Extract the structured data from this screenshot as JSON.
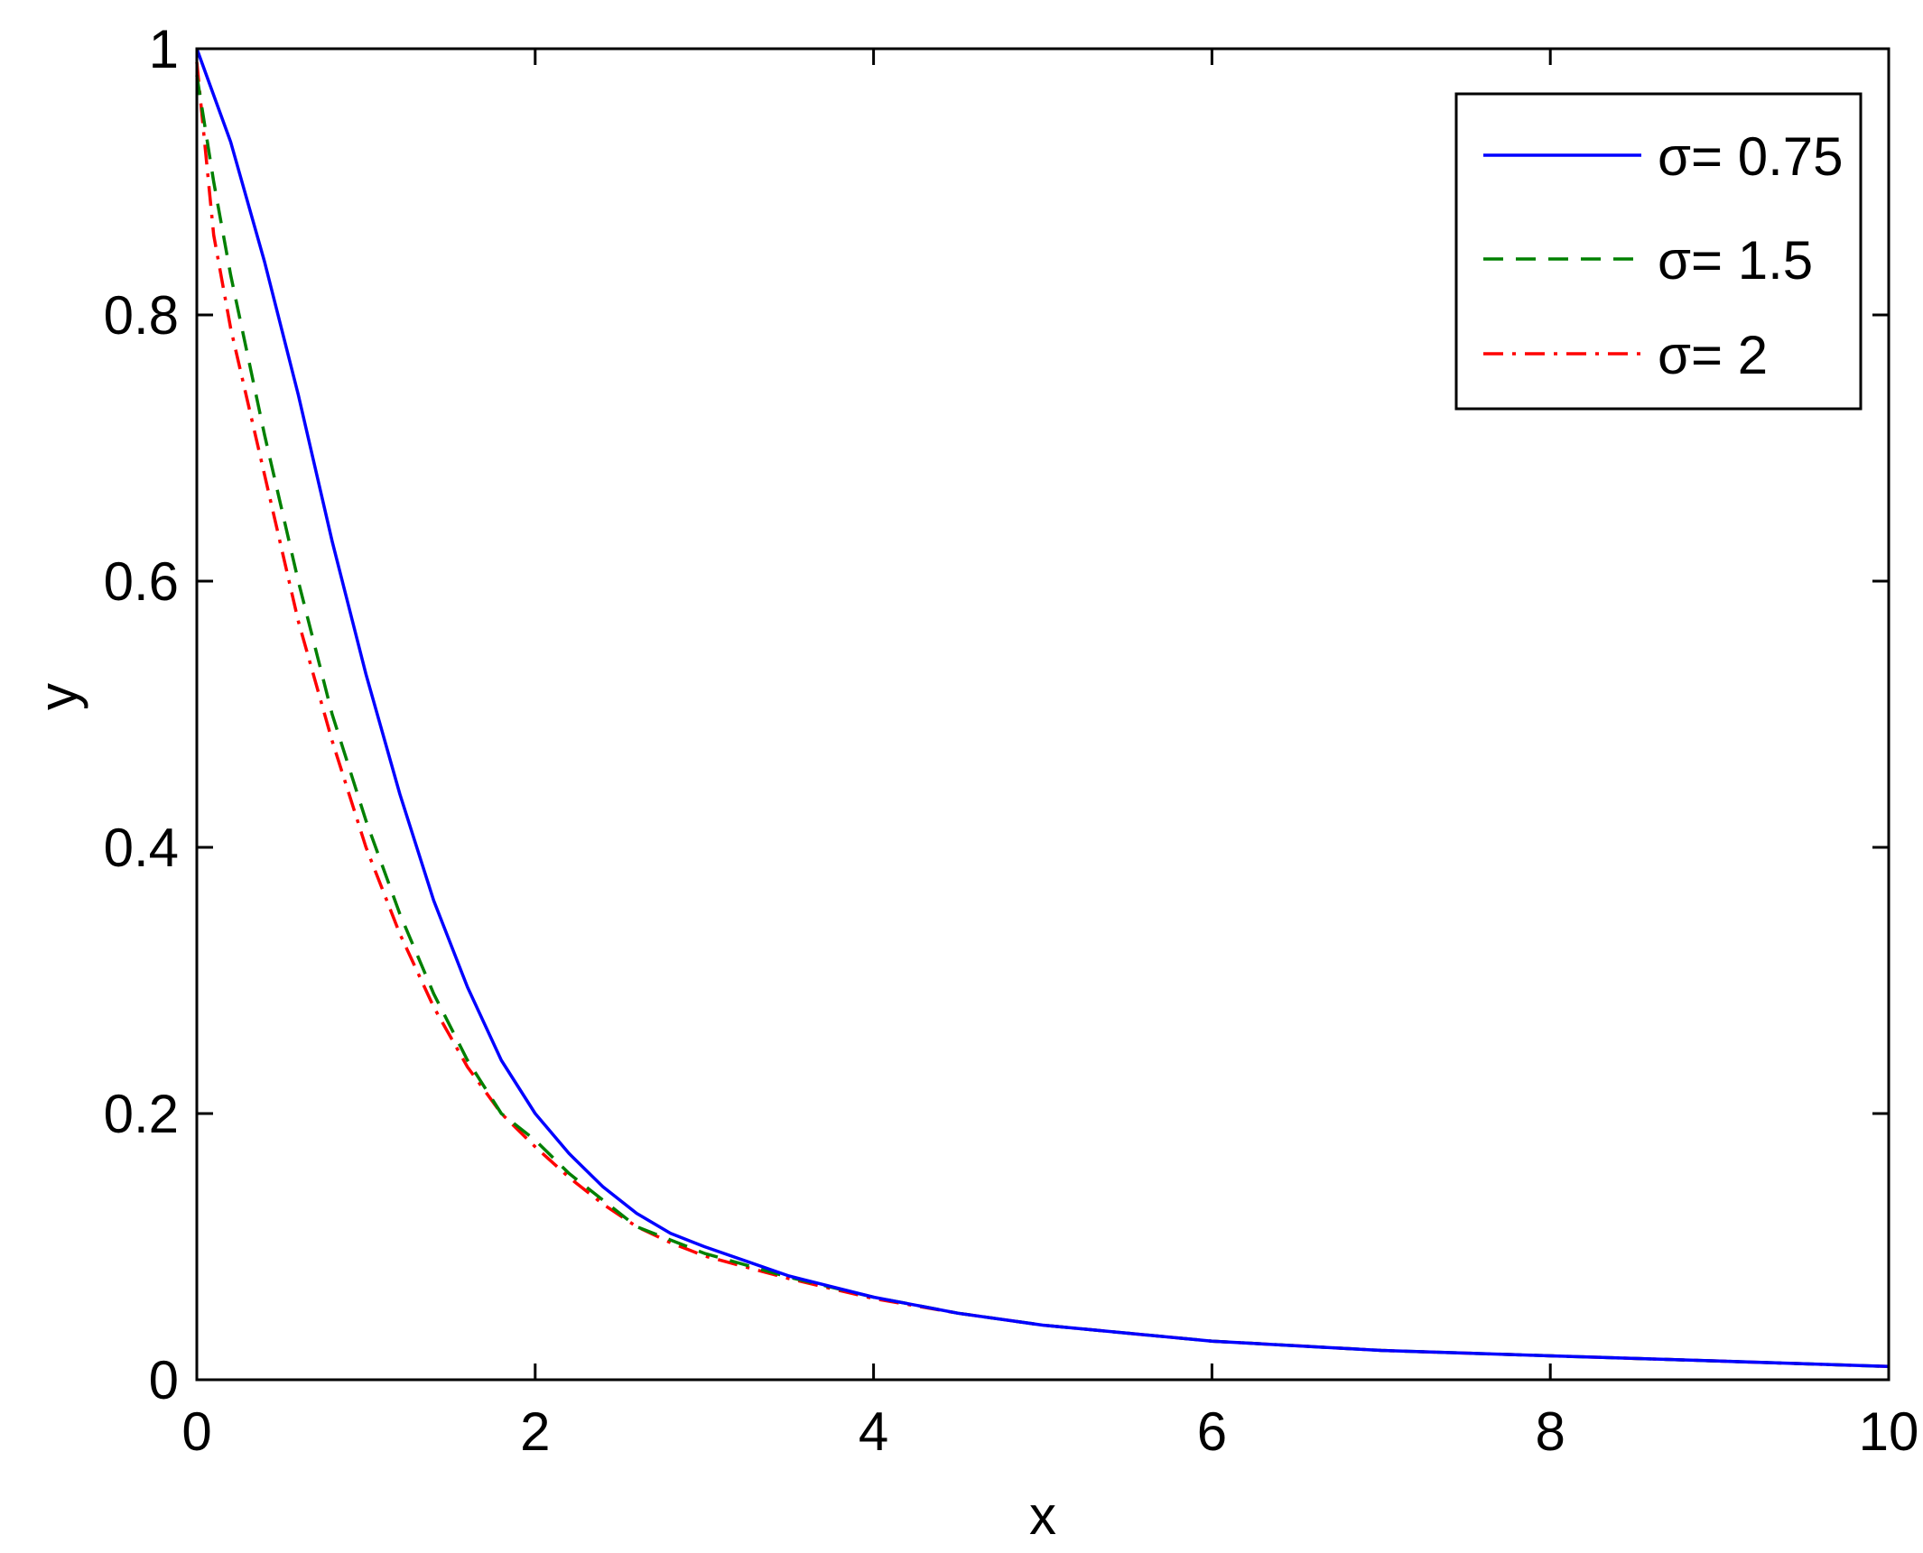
{
  "chart_data": {
    "type": "line",
    "title": "",
    "xlabel": "x",
    "ylabel": "y",
    "xlim": [
      0,
      10
    ],
    "ylim": [
      0,
      1
    ],
    "xticks": [
      0,
      2,
      4,
      6,
      8,
      10
    ],
    "yticks": [
      0,
      0.2,
      0.4,
      0.6,
      0.8,
      1
    ],
    "xtick_labels": [
      "0",
      "2",
      "4",
      "6",
      "8",
      "10"
    ],
    "ytick_labels": [
      "0",
      "0.2",
      "0.4",
      "0.6",
      "0.8",
      "1"
    ],
    "grid": false,
    "legend_position": "top-right",
    "series": [
      {
        "name": "σ= 0.75",
        "color": "#0000ff",
        "style": "solid",
        "x": [
          0,
          0.2,
          0.4,
          0.6,
          0.8,
          1.0,
          1.2,
          1.4,
          1.6,
          1.8,
          2.0,
          2.2,
          2.4,
          2.6,
          2.8,
          3.0,
          3.5,
          4.0,
          4.5,
          5.0,
          5.5,
          6.0,
          7.0,
          8.0,
          9.0,
          10.0
        ],
        "y": [
          1.0,
          0.93,
          0.84,
          0.74,
          0.63,
          0.53,
          0.44,
          0.36,
          0.295,
          0.24,
          0.2,
          0.17,
          0.145,
          0.125,
          0.11,
          0.1,
          0.078,
          0.062,
          0.05,
          0.041,
          0.035,
          0.029,
          0.022,
          0.018,
          0.014,
          0.01
        ]
      },
      {
        "name": "σ= 1.5",
        "color": "#008000",
        "style": "dashed",
        "x": [
          0,
          0.1,
          0.2,
          0.4,
          0.6,
          0.8,
          1.0,
          1.2,
          1.4,
          1.6,
          1.8,
          2.0,
          2.2,
          2.4,
          2.6,
          2.8,
          3.0,
          3.5,
          4.0,
          4.5,
          5.0,
          5.5,
          6.0,
          7.0,
          8.0,
          9.0,
          10.0
        ],
        "y": [
          0.98,
          0.9,
          0.83,
          0.71,
          0.6,
          0.5,
          0.42,
          0.35,
          0.29,
          0.24,
          0.2,
          0.18,
          0.155,
          0.135,
          0.115,
          0.105,
          0.095,
          0.077,
          0.062,
          0.05,
          0.041,
          0.035,
          0.029,
          0.022,
          0.018,
          0.014,
          0.01
        ]
      },
      {
        "name": "σ= 2",
        "color": "#ff0000",
        "style": "dashdot",
        "x": [
          0,
          0.1,
          0.2,
          0.4,
          0.6,
          0.8,
          1.0,
          1.2,
          1.4,
          1.6,
          1.8,
          2.0,
          2.2,
          2.4,
          2.6,
          2.8,
          3.0,
          3.5,
          4.0,
          4.5,
          5.0,
          5.5,
          6.0,
          7.0,
          8.0,
          9.0,
          10.0
        ],
        "y": [
          0.99,
          0.86,
          0.79,
          0.68,
          0.57,
          0.48,
          0.4,
          0.335,
          0.28,
          0.235,
          0.2,
          0.175,
          0.152,
          0.132,
          0.115,
          0.103,
          0.093,
          0.076,
          0.061,
          0.05,
          0.041,
          0.035,
          0.029,
          0.022,
          0.018,
          0.014,
          0.01
        ]
      }
    ]
  }
}
